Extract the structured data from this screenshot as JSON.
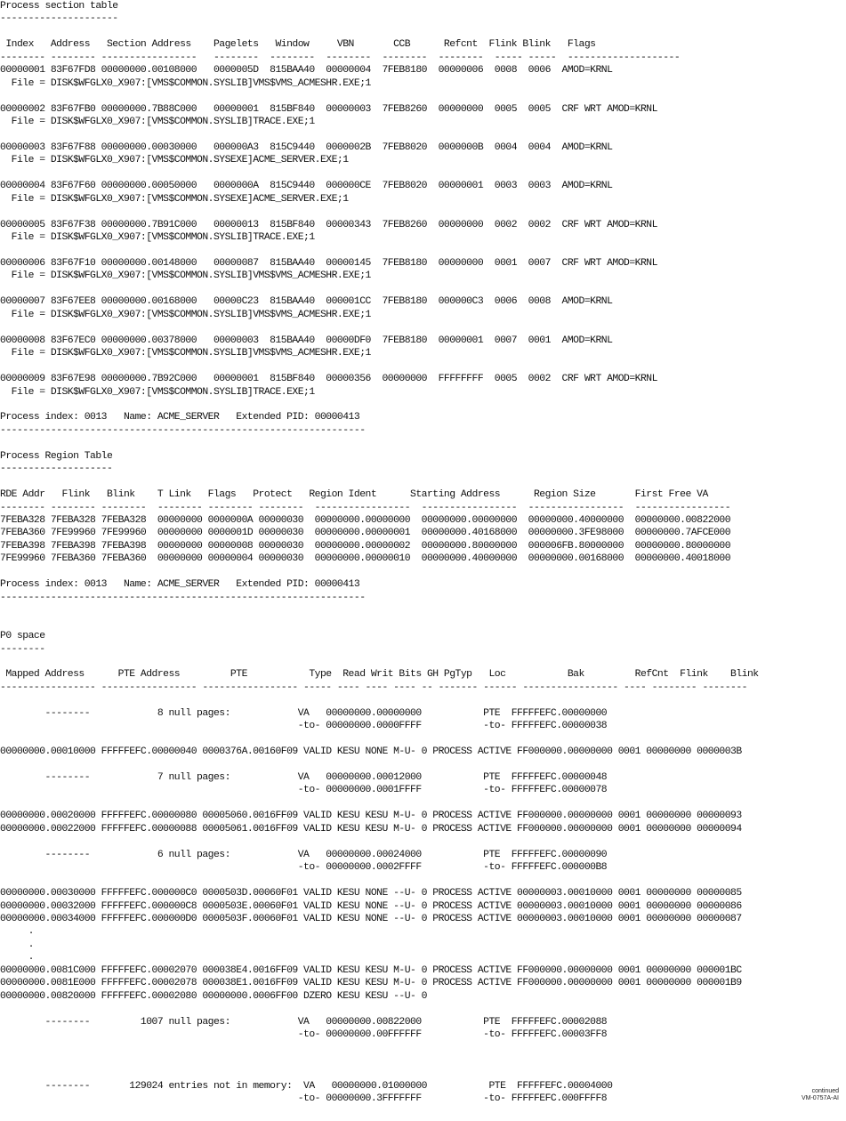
{
  "listing": {
    "lines": [
      {
        "row": 0,
        "text": "Process section table"
      },
      {
        "row": 1,
        "text": "---------------------"
      },
      {
        "row": 3,
        "text": " Index   Address   Section Address    Pagelets   Window     VBN       CCB      Refcnt  Flink Blink   Flags"
      },
      {
        "row": 4,
        "text": "-------- -------- -----------------   --------  --------  --------  --------  --------  ----- -----  --------------------"
      },
      {
        "row": 5,
        "text": "00000001 83F67FD8 00000000.00108000   0000005D  815BAA40  00000004  7FEB8180  00000006  0008  0006  AMOD=KRNL"
      },
      {
        "row": 6,
        "text": "  File = DISK$WFGLX0_X907:[VMS$COMMON.SYSLIB]VMS$VMS_ACMESHR.EXE;1"
      },
      {
        "row": 8,
        "text": "00000002 83F67FB0 00000000.7B88C000   00000001  815BF840  00000003  7FEB8260  00000000  0005  0005  CRF WRT AMOD=KRNL"
      },
      {
        "row": 9,
        "text": "  File = DISK$WFGLX0_X907:[VMS$COMMON.SYSLIB]TRACE.EXE;1"
      },
      {
        "row": 11,
        "text": "00000003 83F67F88 00000000.00030000   000000A3  815C9440  0000002B  7FEB8020  0000000B  0004  0004  AMOD=KRNL"
      },
      {
        "row": 12,
        "text": "  File = DISK$WFGLX0_X907:[VMS$COMMON.SYSEXE]ACME_SERVER.EXE;1"
      },
      {
        "row": 14,
        "text": "00000004 83F67F60 00000000.00050000   0000000A  815C9440  000000CE  7FEB8020  00000001  0003  0003  AMOD=KRNL"
      },
      {
        "row": 15,
        "text": "  File = DISK$WFGLX0_X907:[VMS$COMMON.SYSEXE]ACME_SERVER.EXE;1"
      },
      {
        "row": 17,
        "text": "00000005 83F67F38 00000000.7B91C000   00000013  815BF840  00000343  7FEB8260  00000000  0002  0002  CRF WRT AMOD=KRNL"
      },
      {
        "row": 18,
        "text": "  File = DISK$WFGLX0_X907:[VMS$COMMON.SYSLIB]TRACE.EXE;1"
      },
      {
        "row": 20,
        "text": "00000006 83F67F10 00000000.00148000   00000087  815BAA40  00000145  7FEB8180  00000000  0001  0007  CRF WRT AMOD=KRNL"
      },
      {
        "row": 21,
        "text": "  File = DISK$WFGLX0_X907:[VMS$COMMON.SYSLIB]VMS$VMS_ACMESHR.EXE;1"
      },
      {
        "row": 23,
        "text": "00000007 83F67EE8 00000000.00168000   00000C23  815BAA40  000001CC  7FEB8180  000000C3  0006  0008  AMOD=KRNL"
      },
      {
        "row": 24,
        "text": "  File = DISK$WFGLX0_X907:[VMS$COMMON.SYSLIB]VMS$VMS_ACMESHR.EXE;1"
      },
      {
        "row": 26,
        "text": "00000008 83F67EC0 00000000.00378000   00000003  815BAA40  00000DF0  7FEB8180  00000001  0007  0001  AMOD=KRNL"
      },
      {
        "row": 27,
        "text": "  File = DISK$WFGLX0_X907:[VMS$COMMON.SYSLIB]VMS$VMS_ACMESHR.EXE;1"
      },
      {
        "row": 29,
        "text": "00000009 83F67E98 00000000.7B92C000   00000001  815BF840  00000356  00000000  FFFFFFFF  0005  0002  CRF WRT AMOD=KRNL"
      },
      {
        "row": 30,
        "text": "  File = DISK$WFGLX0_X907:[VMS$COMMON.SYSLIB]TRACE.EXE;1"
      },
      {
        "row": 32,
        "text": "Process index: 0013   Name: ACME_SERVER   Extended PID: 00000413"
      },
      {
        "row": 33,
        "text": "-----------------------------------------------------------------"
      },
      {
        "row": 35,
        "text": "Process Region Table"
      },
      {
        "row": 36,
        "text": "--------------------"
      },
      {
        "row": 38,
        "text": "RDE Addr   Flink   Blink    T Link   Flags   Protect   Region Ident      Starting Address      Region Size       First Free VA"
      },
      {
        "row": 39,
        "text": "-------- -------- --------  -------- -------- --------  -----------------  -----------------  -----------------  -----------------"
      },
      {
        "row": 40,
        "text": "7FEBA328 7FEBA328 7FEBA328  00000000 0000000A 00000030  00000000.00000000  00000000.00000000  00000000.40000000  00000000.00822000"
      },
      {
        "row": 41,
        "text": "7FEBA360 7FE99960 7FE99960  00000000 0000001D 00000030  00000000.00000001  00000000.40168000  00000000.3FE98000  00000000.7AFCE000"
      },
      {
        "row": 42,
        "text": "7FEBA398 7FEBA398 7FEBA398  00000000 00000008 00000030  00000000.00000002  00000000.80000000  000006FB.80000000  00000000.80000000"
      },
      {
        "row": 43,
        "text": "7FE99960 7FEBA360 7FEBA360  00000000 00000004 00000030  00000000.00000010  00000000.40000000  00000000.00168000  00000000.40018000"
      },
      {
        "row": 45,
        "text": "Process index: 0013   Name: ACME_SERVER   Extended PID: 00000413"
      },
      {
        "row": 46,
        "text": "-----------------------------------------------------------------"
      },
      {
        "row": 49,
        "text": "P0 space"
      },
      {
        "row": 50,
        "text": "--------"
      },
      {
        "row": 52,
        "text": " Mapped Address      PTE Address         PTE           Type  Read Writ Bits GH PgTyp   Loc           Bak         RefCnt  Flink    Blink"
      },
      {
        "row": 53,
        "text": "----------------- ----------------- ----------------- ----- ---- ---- ---- -- ------- ------ ----------------- ---- -------- --------"
      },
      {
        "row": 55,
        "text": "        --------            8 null pages:            VA   00000000.00000000           PTE  FFFFFEFC.00000000"
      },
      {
        "row": 56,
        "text": "                                                     -to- 00000000.0000FFFF           -to- FFFFFEFC.00000038"
      },
      {
        "row": 58,
        "text": "00000000.00010000 FFFFFEFC.00000040 0000376A.00160F09 VALID KESU NONE M-U- 0 PROCESS ACTIVE FF000000.00000000 0001 00000000 0000003B"
      },
      {
        "row": 60,
        "text": "        --------            7 null pages:            VA   00000000.00012000           PTE  FFFFFEFC.00000048"
      },
      {
        "row": 61,
        "text": "                                                     -to- 00000000.0001FFFF           -to- FFFFFEFC.00000078"
      },
      {
        "row": 63,
        "text": "00000000.00020000 FFFFFEFC.00000080 00005060.0016FF09 VALID KESU KESU M-U- 0 PROCESS ACTIVE FF000000.00000000 0001 00000000 00000093"
      },
      {
        "row": 64,
        "text": "00000000.00022000 FFFFFEFC.00000088 00005061.0016FF09 VALID KESU KESU M-U- 0 PROCESS ACTIVE FF000000.00000000 0001 00000000 00000094"
      },
      {
        "row": 66,
        "text": "        --------            6 null pages:            VA   00000000.00024000           PTE  FFFFFEFC.00000090"
      },
      {
        "row": 67,
        "text": "                                                     -to- 00000000.0002FFFF           -to- FFFFFEFC.000000B8"
      },
      {
        "row": 69,
        "text": "00000000.00030000 FFFFFEFC.000000C0 0000503D.00060F01 VALID KESU NONE --U- 0 PROCESS ACTIVE 00000003.00010000 0001 00000000 00000085"
      },
      {
        "row": 70,
        "text": "00000000.00032000 FFFFFEFC.000000C8 0000503E.00060F01 VALID KESU NONE --U- 0 PROCESS ACTIVE 00000003.00010000 0001 00000000 00000086"
      },
      {
        "row": 71,
        "text": "00000000.00034000 FFFFFEFC.000000D0 0000503F.00060F01 VALID KESU NONE --U- 0 PROCESS ACTIVE 00000003.00010000 0001 00000000 00000087"
      },
      {
        "row": 72,
        "text": "     ."
      },
      {
        "row": 73,
        "text": "     ."
      },
      {
        "row": 74,
        "text": "     ."
      },
      {
        "row": 75,
        "text": "00000000.0081C000 FFFFFEFC.00002070 000038E4.0016FF09 VALID KESU KESU M-U- 0 PROCESS ACTIVE FF000000.00000000 0001 00000000 000001BC"
      },
      {
        "row": 76,
        "text": "00000000.0081E000 FFFFFEFC.00002078 000038E1.0016FF09 VALID KESU KESU M-U- 0 PROCESS ACTIVE FF000000.00000000 0001 00000000 000001B9"
      },
      {
        "row": 77,
        "text": "00000000.00820000 FFFFFEFC.00002080 00000000.0006FF00 DZERO KESU KESU --U- 0"
      },
      {
        "row": 79,
        "text": "        --------         1007 null pages:            VA   00000000.00822000           PTE  FFFFFEFC.00002088"
      },
      {
        "row": 80,
        "text": "                                                     -to- 00000000.00FFFFFF           -to- FFFFFEFC.00003FF8"
      },
      {
        "row": 84,
        "text": "        --------       129024 entries not in memory:  VA   00000000.01000000           PTE  FFFFFEFC.00004000"
      },
      {
        "row": 85,
        "text": "                                                     -to- 00000000.3FFFFFFF           -to- FFFFFEFC.000FFFF8"
      }
    ]
  },
  "footnote": {
    "continued": "continued",
    "figure_id": "VM-0757A-AI"
  }
}
